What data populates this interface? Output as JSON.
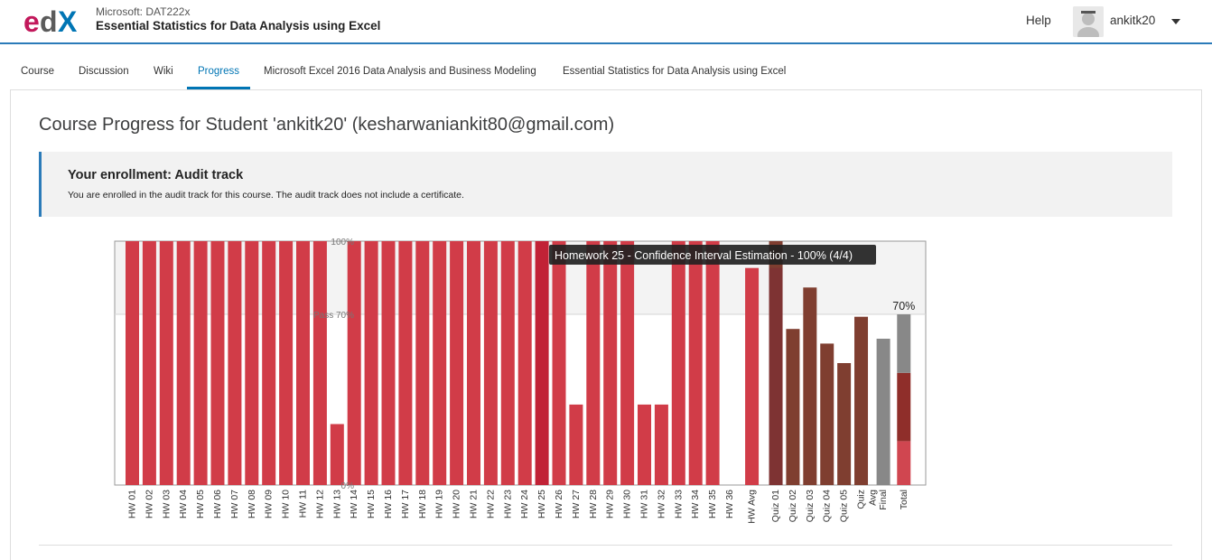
{
  "header": {
    "logo_text": "edX",
    "course_org": "Microsoft: DAT222x",
    "course_title": "Essential Statistics for Data Analysis using Excel",
    "help": "Help",
    "username": "ankitk20",
    "colors": {
      "accent": "#2b7bb9",
      "logo_e": "#c2185b",
      "logo_x": "#0075b4"
    }
  },
  "tabs": [
    {
      "label": "Course"
    },
    {
      "label": "Discussion"
    },
    {
      "label": "Wiki"
    },
    {
      "label": "Progress",
      "active": true
    },
    {
      "label": "Microsoft Excel 2016 Data Analysis and Business Modeling"
    },
    {
      "label": "Essential Statistics for Data Analysis using Excel"
    }
  ],
  "page": {
    "title": "Course Progress for Student 'ankitk20' (kesharwaniankit80@gmail.com)"
  },
  "notice": {
    "title": "Your enrollment: Audit track",
    "text": "You are enrolled in the audit track for this course. The audit track does not include a certificate."
  },
  "chart_data": {
    "type": "bar",
    "categories": [
      "HW 01",
      "HW 02",
      "HW 03",
      "HW 04",
      "HW 05",
      "HW 06",
      "HW 07",
      "HW 08",
      "HW 09",
      "HW 10",
      "HW 11",
      "HW 12",
      "HW 13",
      "HW 14",
      "HW 15",
      "HW 16",
      "HW 17",
      "HW 18",
      "HW 19",
      "HW 20",
      "HW 21",
      "HW 22",
      "HW 23",
      "HW 24",
      "HW 25",
      "HW 26",
      "HW 27",
      "HW 28",
      "HW 29",
      "HW 30",
      "HW 31",
      "HW 32",
      "HW 33",
      "HW 34",
      "HW 35",
      "HW 36",
      "HW Avg",
      "Quiz 01",
      "Quiz 02",
      "Quiz 03",
      "Quiz 04",
      "Quiz 05",
      "Quiz Avg",
      "Final",
      "Total"
    ],
    "values": [
      100,
      100,
      100,
      100,
      100,
      100,
      100,
      100,
      100,
      100,
      100,
      100,
      25,
      100,
      100,
      100,
      100,
      100,
      100,
      100,
      100,
      100,
      100,
      100,
      100,
      100,
      33,
      100,
      100,
      100,
      33,
      33,
      100,
      100,
      100,
      0,
      89,
      100,
      64,
      81,
      58,
      50,
      69,
      60,
      70
    ],
    "ylim": [
      0,
      100
    ],
    "yticks": [
      "100%",
      "Pass 70%",
      "0%"
    ],
    "total_label": "70%",
    "tooltip": "Homework 25 - Confidence Interval Estimation - 100% (4/4)",
    "total_segments": [
      {
        "label": "HW",
        "value": 18,
        "color": "#d04650"
      },
      {
        "label": "Quiz",
        "value": 28,
        "color": "#8f2e2a"
      },
      {
        "label": "Final",
        "value": 24,
        "color": "#888888"
      }
    ],
    "colors": {
      "homework": "#d13c48",
      "homework_highlight": "#c12236",
      "quiz": "#7f3e30",
      "final": "#888888",
      "hw_avg_overlap": "#7d2a36"
    }
  }
}
